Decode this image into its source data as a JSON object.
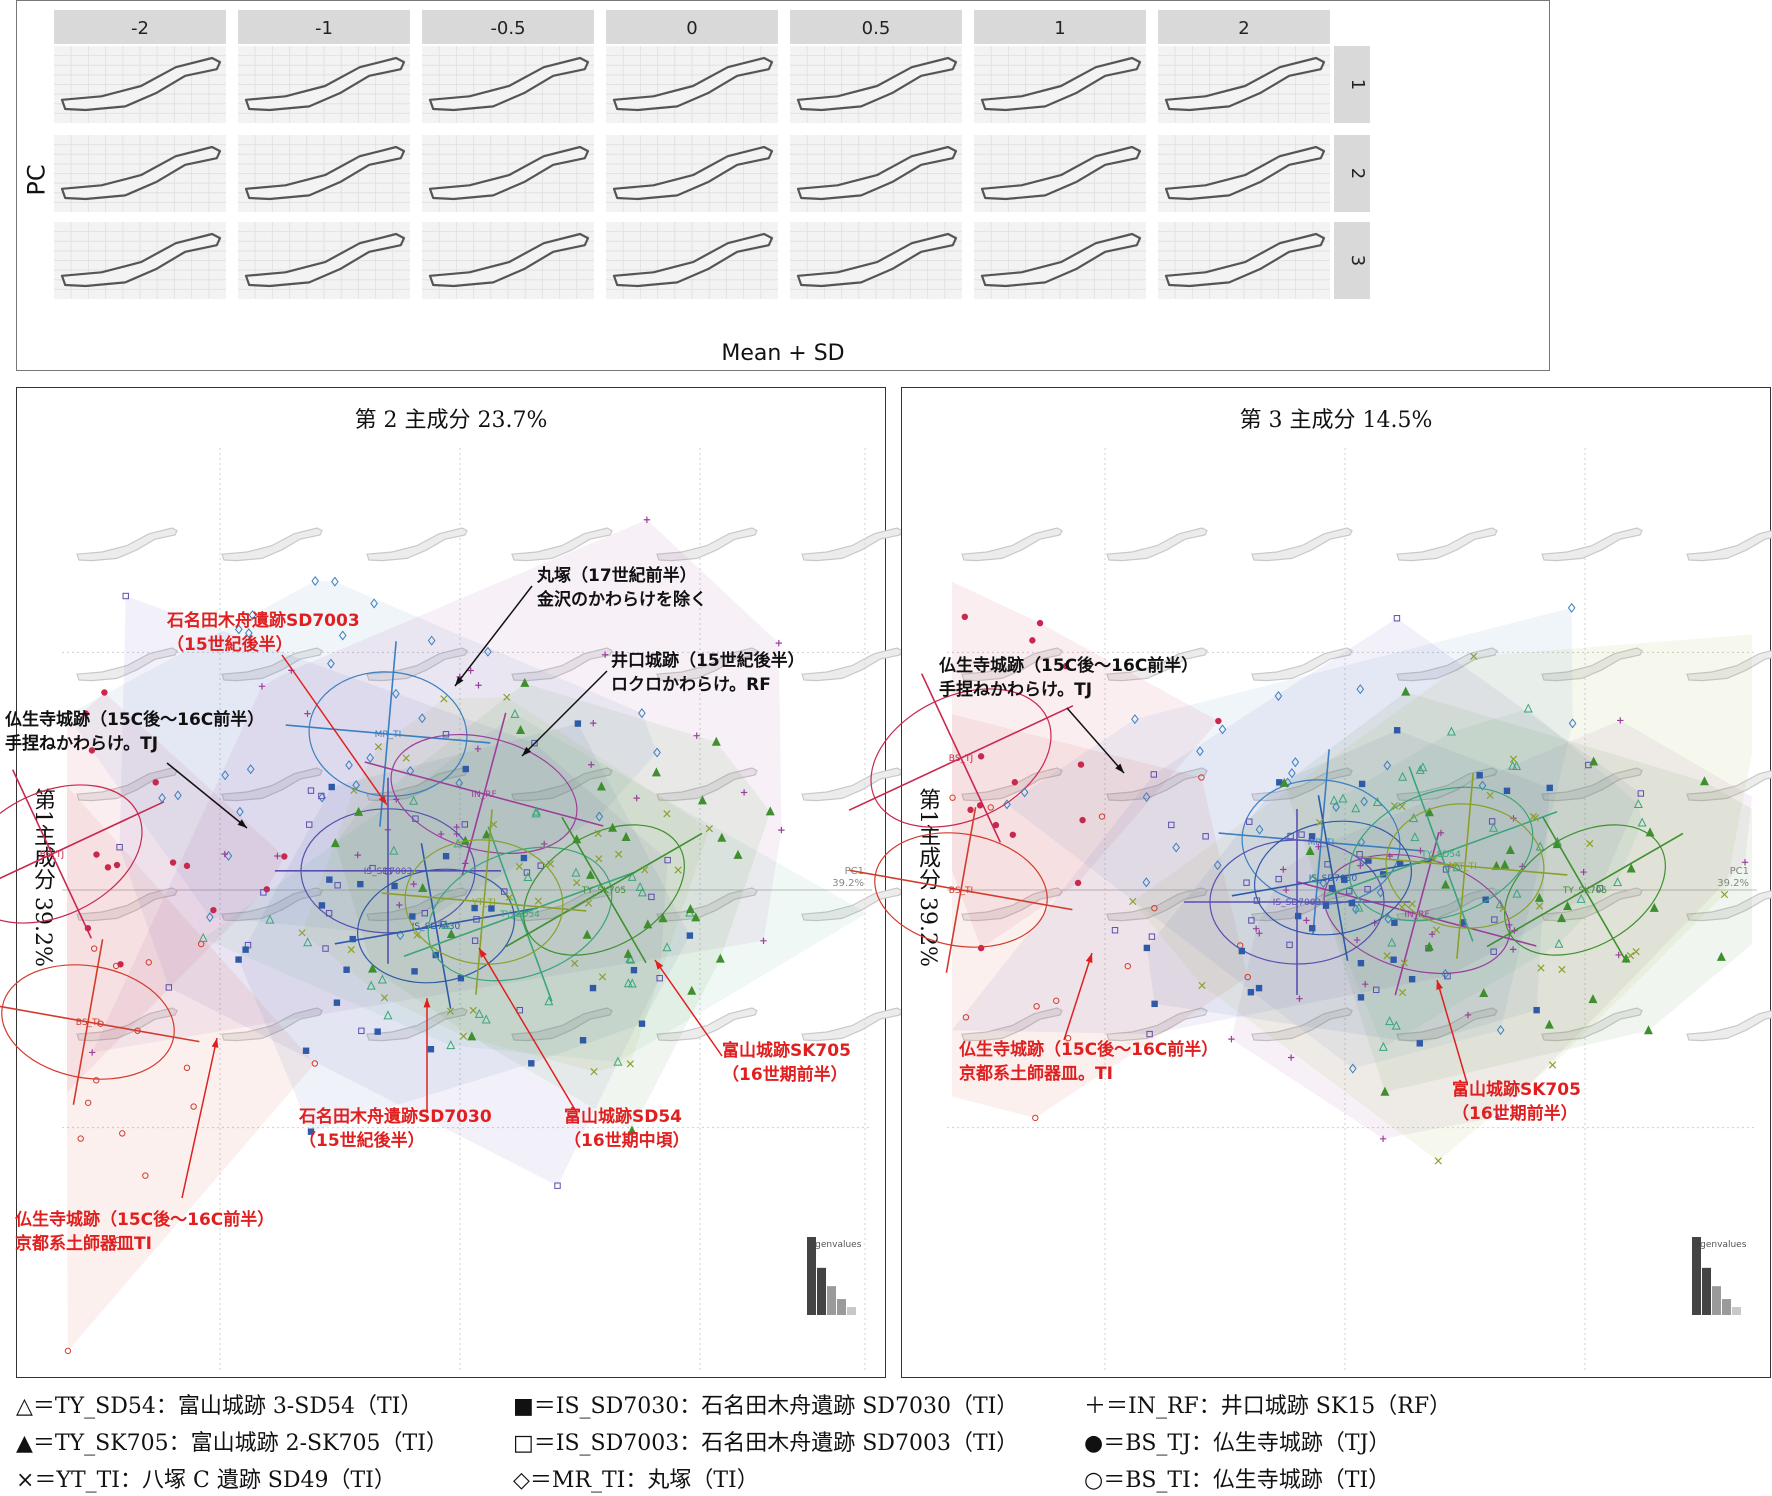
{
  "top_figure": {
    "col_labels": [
      "-2",
      "-1",
      "-0.5",
      "0",
      "0.5",
      "1",
      "2"
    ],
    "row_labels": [
      "1",
      "2",
      "3"
    ],
    "ylabel": "PC",
    "xlabel": "Mean + SD"
  },
  "chart_data": [
    {
      "type": "scatter",
      "title": "第 2 主成分 23.7%",
      "ylabel": "第1主成分 39.2%",
      "axis_note": "PC1\n39.2%",
      "eigen_label": "Eigenvalues",
      "eigenvalues": [
        39.2,
        23.7,
        14.5,
        8,
        4
      ],
      "groups": [
        {
          "name": "BS_TJ",
          "label": "BS_TJ",
          "center": [
            -1.7,
            0.15
          ],
          "color": "#c8284e"
        },
        {
          "name": "BS_TI",
          "label": "BS_TI",
          "center": [
            -1.55,
            -0.55
          ],
          "color": "#d23b2c"
        },
        {
          "name": "MR_TI",
          "label": "MR_TI",
          "center": [
            -0.3,
            0.65
          ],
          "color": "#3a7fbf"
        },
        {
          "name": "IN_RF",
          "label": "IN_RF",
          "center": [
            0.1,
            0.4
          ],
          "color": "#9b3f9b"
        },
        {
          "name": "IS_SD7003",
          "label": "IS_SD7003",
          "center": [
            -0.3,
            0.08
          ],
          "color": "#5a4fb0"
        },
        {
          "name": "IS_SD7030",
          "label": "IS_SD7030",
          "center": [
            -0.1,
            -0.15
          ],
          "color": "#2f5aa8"
        },
        {
          "name": "TY_SD54",
          "label": "TY_SD54",
          "center": [
            0.25,
            -0.1
          ],
          "color": "#3aa57a"
        },
        {
          "name": "TY_SK705",
          "label": "TY_SK705",
          "center": [
            0.6,
            0.0
          ],
          "color": "#3f8f2f"
        },
        {
          "name": "YT_TI",
          "label": "YT_TI",
          "center": [
            0.1,
            -0.05
          ],
          "color": "#8aa02a"
        }
      ],
      "annotations": [
        {
          "text": "丸塚（17世紀前半）\n金沢のかわらけを除く",
          "color": "#111"
        },
        {
          "text": "石名田木舟遺跡SD7003\n（15世紀後半）",
          "color": "#e02020"
        },
        {
          "text": "井口城跡（15世紀後半）\nロクロかわらけ。RF",
          "color": "#111"
        },
        {
          "text": "仏生寺城跡（15C後～16C前半）\n手捏ねかわらけ。TJ",
          "color": "#111"
        },
        {
          "text": "富山城跡SK705\n（16世期前半）",
          "color": "#e02020"
        },
        {
          "text": "石名田木舟遺跡SD7030\n（15世紀後半）",
          "color": "#e02020"
        },
        {
          "text": "富山城跡SD54\n（16世期中頃）",
          "color": "#e02020"
        },
        {
          "text": "仏生寺城跡（15C後～16C前半）\n京都系土師器皿TI",
          "color": "#e02020"
        }
      ]
    },
    {
      "type": "scatter",
      "title": "第 3 主成分 14.5%",
      "ylabel": "第1主成分 39.2%",
      "axis_note": "PC1\n39.2%",
      "eigen_label": "Eigenvalues",
      "eigenvalues": [
        39.2,
        23.7,
        14.5,
        8,
        4
      ],
      "groups": [
        {
          "name": "BS_TJ",
          "label": "BS_TJ",
          "center": [
            -1.6,
            0.55
          ],
          "color": "#c8284e"
        },
        {
          "name": "BS_TI",
          "label": "BS_TI",
          "center": [
            -1.6,
            0.0
          ],
          "color": "#d23b2c"
        },
        {
          "name": "MR_TI",
          "label": "MR_TI",
          "center": [
            -0.1,
            0.2
          ],
          "color": "#3a7fbf"
        },
        {
          "name": "IN_RF",
          "label": "IN_RF",
          "center": [
            0.3,
            -0.1
          ],
          "color": "#9b3f9b"
        },
        {
          "name": "IS_SD7003",
          "label": "IS_SD7003",
          "center": [
            -0.2,
            -0.05
          ],
          "color": "#5a4fb0"
        },
        {
          "name": "IS_SD7030",
          "label": "IS_SD7030",
          "center": [
            -0.05,
            0.05
          ],
          "color": "#2f5aa8"
        },
        {
          "name": "TY_SD54",
          "label": "TY_SD54",
          "center": [
            0.4,
            0.15
          ],
          "color": "#3aa57a"
        },
        {
          "name": "TY_SK705",
          "label": "TY_SK705",
          "center": [
            1.0,
            0.0
          ],
          "color": "#3f8f2f"
        },
        {
          "name": "YT_TI",
          "label": "YT_TI",
          "center": [
            0.5,
            0.1
          ],
          "color": "#8aa02a"
        }
      ],
      "annotations": [
        {
          "text": "仏生寺城跡（15C後～16C前半）\n手捏ねかわらけ。TJ",
          "color": "#111"
        },
        {
          "text": "仏生寺城跡（15C後～16C前半）\n京都系土師器皿。TI",
          "color": "#e02020"
        },
        {
          "text": "富山城跡SK705\n（16世期前半）",
          "color": "#e02020"
        }
      ]
    }
  ],
  "legend": [
    [
      "△＝TY_SD54：富山城跡 3-SD54（TI）",
      "■＝IS_SD7030：石名田木舟遺跡 SD7030（TI）",
      "＋＝IN_RF：井口城跡 SK15（RF）"
    ],
    [
      "▲＝TY_SK705：富山城跡 2-SK705（TI）",
      "□＝IS_SD7003：石名田木舟遺跡 SD7003（TI）",
      "●＝BS_TJ：仏生寺城跡（TJ）"
    ],
    [
      "×＝YT_TI：八塚 C 遺跡 SD49（TI）",
      "◇＝MR_TI：丸塚（TI）",
      "○＝BS_TI：仏生寺城跡（TI）"
    ]
  ]
}
